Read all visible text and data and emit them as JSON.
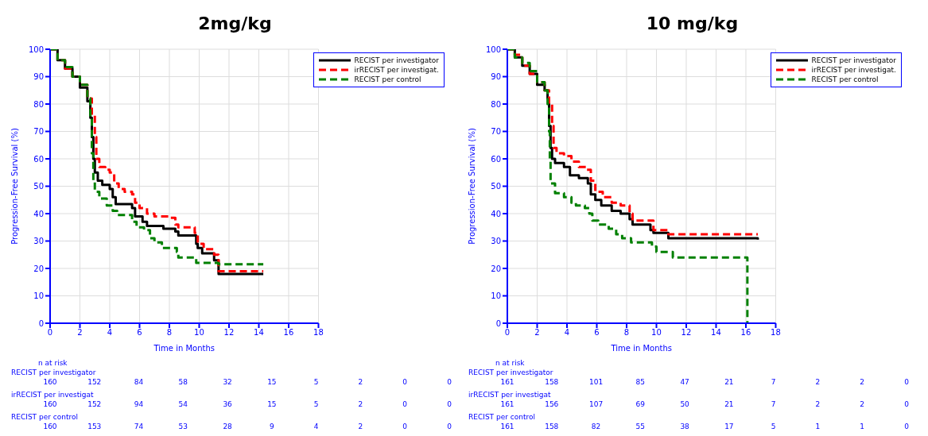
{
  "chart_data": [
    {
      "type": "step",
      "title": "2mg/kg",
      "xlabel": "Time in Months",
      "ylabel": "Progression-Free Survival (%)",
      "xlim": [
        0,
        18
      ],
      "xticks": [
        0,
        2,
        4,
        6,
        8,
        10,
        12,
        14,
        16,
        18
      ],
      "ylim": [
        0,
        100
      ],
      "yticks": [
        0,
        10,
        20,
        30,
        40,
        50,
        60,
        70,
        80,
        90,
        100
      ],
      "grid": true,
      "legend": "top right",
      "series": [
        {
          "name": "RECIST per investigator",
          "color": "#000000",
          "line_style": "solid",
          "x": [
            0,
            0.5,
            1,
            1.5,
            2,
            2.5,
            2.7,
            2.8,
            2.9,
            3.0,
            3.2,
            3.5,
            4,
            4.2,
            4.4,
            5.5,
            5.7,
            6.2,
            6.5,
            7.6,
            8.4,
            8.6,
            9.8,
            9.9,
            10.2,
            11,
            11.3,
            14.3
          ],
          "values": [
            100,
            96,
            93,
            90,
            86,
            81,
            75,
            68,
            60,
            55,
            52,
            50.5,
            49,
            46,
            43.5,
            42,
            39,
            37,
            35.5,
            34.5,
            33.5,
            32,
            29,
            27.5,
            25.5,
            23,
            18,
            18
          ]
        },
        {
          "name": "irRECIST per investigat.",
          "color": "#ff0000",
          "line_style": "dashed",
          "x": [
            0,
            0.5,
            1,
            1.5,
            2,
            2.5,
            2.8,
            3,
            3.1,
            3.3,
            3.7,
            4,
            4.3,
            4.6,
            5,
            5.5,
            5.7,
            6,
            6.5,
            7,
            8,
            8.4,
            8.6,
            9.7,
            9.9,
            10.3,
            11,
            11.3,
            14.3
          ],
          "values": [
            100,
            96,
            93,
            90,
            87,
            82,
            76,
            68,
            60,
            57,
            56,
            55,
            51,
            49,
            48,
            47,
            44,
            42,
            40,
            39,
            38.5,
            36,
            35,
            33,
            29,
            27,
            25,
            19,
            19
          ]
        },
        {
          "name": "RECIST per control",
          "color": "#008000",
          "line_style": "dashed",
          "x": [
            0,
            0.5,
            1,
            1.5,
            2,
            2.5,
            2.7,
            2.8,
            2.9,
            3.0,
            3.3,
            3.8,
            4.2,
            4.5,
            5.5,
            5.8,
            6.3,
            6.7,
            7.0,
            7.5,
            8.5,
            8.6,
            9.8,
            11.3,
            14.3
          ],
          "values": [
            100,
            96,
            93.5,
            90,
            87,
            82,
            75,
            62,
            52,
            48,
            45.5,
            43,
            41,
            39.5,
            37,
            35,
            34,
            31,
            29.5,
            27.5,
            26,
            24,
            22,
            21.5,
            21.5
          ]
        }
      ],
      "annotations": [
        "n at risk",
        "RECIST per investigator",
        "160 152 84 58 32 15 5 2 0 0",
        "irRECIST per investigat",
        "160 152 94 54 36 15 5 2 0 0",
        "RECIST per control",
        "160 153 74 53 28 9 4 2 0 0"
      ]
    },
    {
      "type": "step",
      "title": "10 mg/kg",
      "xlabel": "Time in Months",
      "ylabel": "Progression-Free Survival (%)",
      "xlim": [
        0,
        18
      ],
      "xticks": [
        0,
        2,
        4,
        6,
        8,
        10,
        12,
        14,
        16,
        18
      ],
      "ylim": [
        0,
        100
      ],
      "yticks": [
        0,
        10,
        20,
        30,
        40,
        50,
        60,
        70,
        80,
        90,
        100
      ],
      "grid": true,
      "legend": "top right",
      "series": [
        {
          "name": "RECIST per investigator",
          "color": "#000000",
          "line_style": "solid",
          "x": [
            0,
            0.5,
            1,
            1.5,
            2,
            2.5,
            2.7,
            2.8,
            2.9,
            3.0,
            3.2,
            3.8,
            4.2,
            4.8,
            5.4,
            5.6,
            5.9,
            6.3,
            7,
            7.6,
            8.2,
            8.4,
            9.6,
            9.8,
            10.8,
            16.8
          ],
          "values": [
            100,
            97,
            94,
            91,
            87,
            85,
            82,
            72,
            64,
            60,
            58.5,
            57,
            54,
            53,
            51,
            47,
            45,
            43,
            41,
            40,
            38,
            36,
            34,
            33,
            31,
            30.5
          ]
        },
        {
          "name": "irRECIST per investigat.",
          "color": "#ff0000",
          "line_style": "dashed",
          "x": [
            0,
            0.5,
            1,
            1.5,
            2,
            2.5,
            2.8,
            3.0,
            3.1,
            3.3,
            3.8,
            4.3,
            4.8,
            5.3,
            5.6,
            5.9,
            6.4,
            7.0,
            7.6,
            8.2,
            8.4,
            9.6,
            9.8,
            10.8,
            16.8
          ],
          "values": [
            100,
            98,
            94,
            91,
            88,
            85,
            80,
            72,
            64,
            62,
            61,
            59,
            57,
            56,
            52,
            48,
            46,
            44,
            43,
            40,
            37.5,
            37.5,
            34,
            32.5,
            32.5
          ]
        },
        {
          "name": "RECIST per control",
          "color": "#008000",
          "line_style": "dashed",
          "x": [
            0,
            0.5,
            1,
            1.5,
            2,
            2.5,
            2.7,
            2.8,
            2.85,
            2.9,
            3.2,
            3.8,
            4.3,
            4.6,
            5.2,
            5.5,
            5.7,
            6.1,
            6.8,
            7.3,
            7.7,
            8.3,
            9.7,
            10,
            11.1,
            16.1,
            16.1
          ],
          "values": [
            100,
            97,
            95,
            92,
            88,
            85,
            80,
            70,
            60,
            51,
            47.5,
            46,
            44,
            43,
            42,
            40,
            37.5,
            36,
            34.5,
            32.5,
            31,
            29.5,
            28,
            26,
            24,
            24,
            0
          ]
        }
      ],
      "annotations": [
        "n at risk",
        "RECIST per investigator",
        "161 158 101 85 47 21 7 2 2 0",
        "irRECIST per investigat",
        "161 156 107 69 50 21 7 2 2 0",
        "RECIST per control",
        "161 158 82 55 38 17 5 1 1 0"
      ]
    }
  ]
}
